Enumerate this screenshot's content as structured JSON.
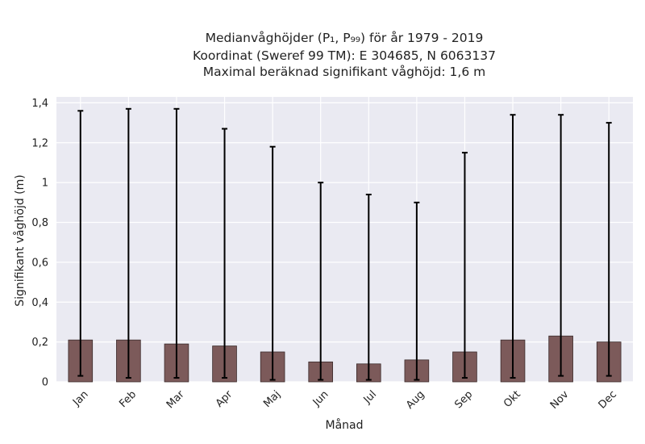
{
  "chart_data": {
    "type": "bar",
    "title_lines": [
      "Medianvåghöjder (P₁, P₉₉) för år 1979 - 2019",
      "Koordinat (Sweref 99 TM): E 304685, N 6063137",
      "Maximal beräknad signifikant våghöjd: 1,6 m"
    ],
    "xlabel": "Månad",
    "ylabel": "Signifikant våghöjd (m)",
    "categories": [
      "Jan",
      "Feb",
      "Mar",
      "Apr",
      "Maj",
      "Jun",
      "Jul",
      "Aug",
      "Sep",
      "Okt",
      "Nov",
      "Dec"
    ],
    "values": [
      0.21,
      0.21,
      0.19,
      0.18,
      0.15,
      0.1,
      0.09,
      0.11,
      0.15,
      0.21,
      0.23,
      0.2
    ],
    "error_low": [
      0.03,
      0.02,
      0.02,
      0.02,
      0.01,
      0.01,
      0.01,
      0.01,
      0.02,
      0.02,
      0.03,
      0.03
    ],
    "error_high": [
      1.36,
      1.37,
      1.37,
      1.27,
      1.18,
      1.0,
      0.94,
      0.9,
      1.15,
      1.34,
      1.34,
      1.3
    ],
    "ylim": [
      0,
      1.43
    ],
    "yticks": [
      0,
      0.2,
      0.4,
      0.6,
      0.8,
      1,
      1.2,
      1.4
    ],
    "ytick_labels": [
      "0",
      "0,2",
      "0,4",
      "0,6",
      "0,8",
      "1",
      "1,2",
      "1,4"
    ],
    "grid": true,
    "colors": {
      "bar": "#7c5a5a",
      "bar_edge": "#3a2a2a",
      "error": "#000000",
      "plot_bg": "#eaeaf2",
      "grid": "#ffffff"
    }
  }
}
